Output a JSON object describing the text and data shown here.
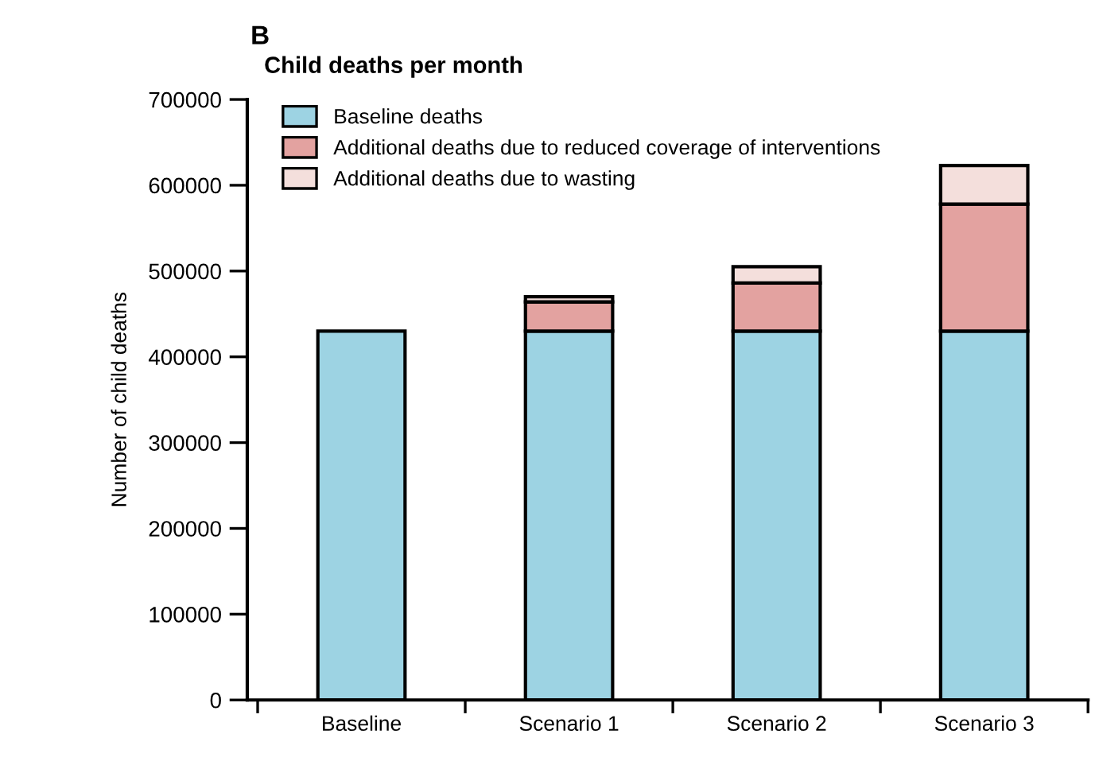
{
  "chart_data": {
    "type": "bar",
    "stacked": true,
    "title": "Child deaths per month",
    "annotations": [
      "B"
    ],
    "ylabel": "Number of child deaths",
    "categories": [
      "Baseline",
      "Scenario 1",
      "Scenario 2",
      "Scenario 3"
    ],
    "series": [
      {
        "name": "Baseline deaths",
        "color": "#9dd3e3",
        "values": [
          430000,
          430000,
          430000,
          430000
        ]
      },
      {
        "name": "Additional deaths due to reduced coverage of interventions",
        "color": "#e3a2a0",
        "values": [
          null,
          34000,
          56000,
          148000
        ]
      },
      {
        "name": "Additional deaths due to wasting",
        "color": "#f4dfdc",
        "values": [
          null,
          6000,
          19000,
          45000
        ]
      }
    ],
    "ylim": [
      0,
      700000
    ],
    "yticks": [
      0,
      100000,
      200000,
      300000,
      400000,
      500000,
      600000,
      700000
    ],
    "grid": false,
    "legend": "top left"
  }
}
